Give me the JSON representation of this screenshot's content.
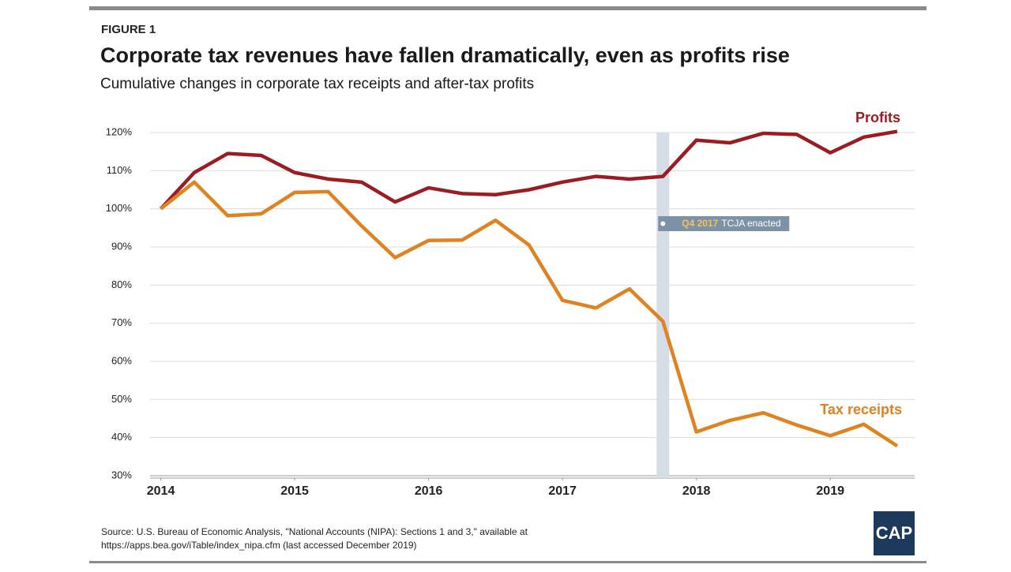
{
  "figure_label": "FIGURE 1",
  "chart_data": {
    "type": "line",
    "title": "Corporate tax revenues have fallen dramatically, even as profits rise",
    "subtitle": "Cumulative changes in corporate tax receipts and after-tax profits",
    "x": [
      2014,
      2014.25,
      2014.5,
      2014.75,
      2015,
      2015.25,
      2015.5,
      2015.75,
      2016,
      2016.25,
      2016.5,
      2016.75,
      2017,
      2017.25,
      2017.5,
      2017.75,
      2018,
      2018.25,
      2018.5,
      2018.75,
      2019,
      2019.25,
      2019.5
    ],
    "series": [
      {
        "name": "Profits",
        "color": "#9b1c22",
        "values": [
          100,
          109.5,
          114.5,
          114,
          109.5,
          107.8,
          107,
          101.8,
          105.5,
          104,
          103.7,
          105,
          107,
          108.5,
          107.8,
          108.5,
          118,
          117.3,
          119.8,
          119.5,
          114.7,
          118.8,
          120.3
        ]
      },
      {
        "name": "Tax receipts",
        "color": "#e0821f",
        "values": [
          100,
          107,
          98.2,
          98.7,
          104.3,
          104.5,
          95.5,
          87.2,
          91.7,
          91.8,
          97,
          90.5,
          76,
          74,
          79,
          70.5,
          41.5,
          44.5,
          46.5,
          43.3,
          40.5,
          43.5,
          37.8
        ]
      }
    ],
    "xlim": [
      2013.92,
      2019.63
    ],
    "xticks": [
      2014,
      2015,
      2016,
      2017,
      2018,
      2019
    ],
    "ylim": [
      30,
      120
    ],
    "yticks": [
      {
        "value": 30,
        "label": "30%"
      },
      {
        "value": 40,
        "label": "40%"
      },
      {
        "value": 50,
        "label": "50%"
      },
      {
        "value": 60,
        "label": "60%"
      },
      {
        "value": 70,
        "label": "70%"
      },
      {
        "value": 80,
        "label": "80%"
      },
      {
        "value": 90,
        "label": "90%"
      },
      {
        "value": 100,
        "label": "100%"
      },
      {
        "value": 110,
        "label": "110%"
      },
      {
        "value": 120,
        "label": "120%"
      }
    ],
    "grid": true,
    "highlight": {
      "x": 2017.75,
      "color": "#d5dee6",
      "label_period": "Q4 2017",
      "label_text": "TCJA enacted"
    }
  },
  "source": [
    "Source: U.S. Bureau of Economic Analysis, \"National Accounts (NIPA): Sections 1 and 3,\" available at",
    "https://apps.bea.gov/iTable/index_nipa.cfm (last accessed December 2019)"
  ],
  "logo": "CAP"
}
